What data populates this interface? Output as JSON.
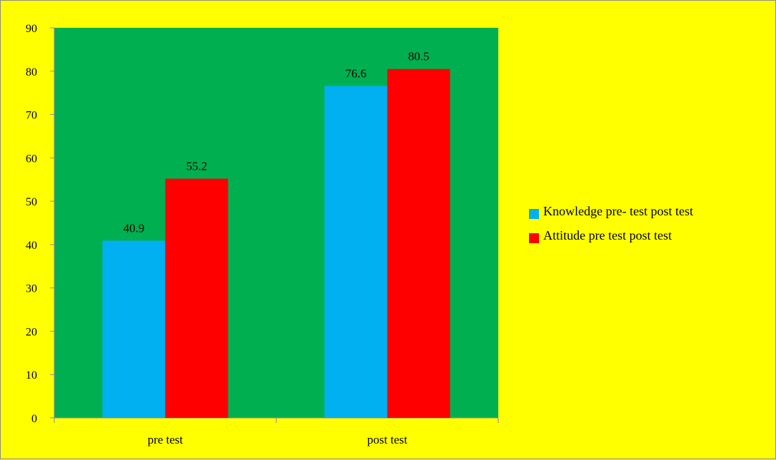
{
  "colors": {
    "page_background": "#ffff00",
    "plot_background": "#00b050",
    "axis": "#8c8c8c"
  },
  "chart_data": {
    "type": "bar",
    "categories": [
      "pre test",
      "post test"
    ],
    "series": [
      {
        "name": "Knowledge pre- test post test",
        "values": [
          40.9,
          76.6
        ],
        "color": "#00b0f0"
      },
      {
        "name": "Attitude pre test post test",
        "values": [
          55.2,
          80.5
        ],
        "color": "#ff0000"
      }
    ],
    "title": "",
    "xlabel": "",
    "ylabel": "",
    "ylim": [
      0,
      90
    ],
    "yticks": [
      0,
      10,
      20,
      30,
      40,
      50,
      60,
      70,
      80,
      90
    ],
    "data_labels": [
      "40.9",
      "76.6",
      "55.2",
      "80.5"
    ],
    "grid": false,
    "legend_position": "right"
  }
}
